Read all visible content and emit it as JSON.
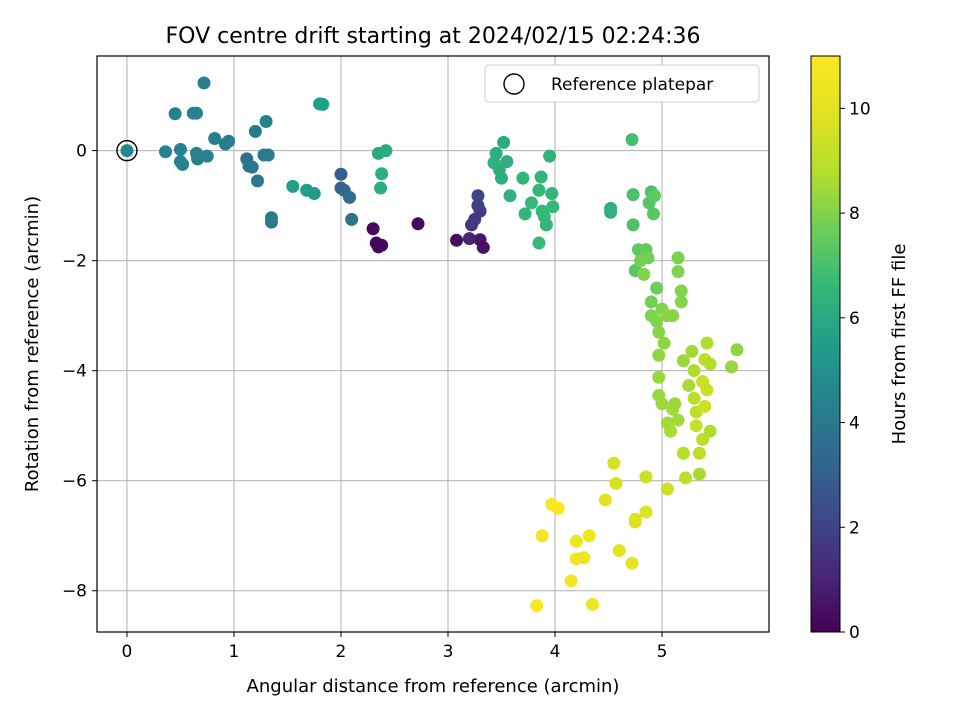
{
  "chart_data": {
    "type": "scatter",
    "title": "FOV centre drift starting at 2024/02/15 02:24:36",
    "xlabel": "Angular distance from reference (arcmin)",
    "ylabel": "Rotation from reference (arcmin)",
    "xlim": [
      -0.28,
      6.0
    ],
    "ylim": [
      -8.75,
      1.72
    ],
    "x_ticks": [
      0,
      1,
      2,
      3,
      4,
      5
    ],
    "y_ticks": [
      0,
      -2,
      -4,
      -6,
      -8
    ],
    "grid": true,
    "legend": {
      "placement": "top-right",
      "entries": [
        {
          "label": "Reference platepar",
          "marker": "open-circle"
        }
      ]
    },
    "reference_point": {
      "x": 0,
      "y": 0
    },
    "colorbar": {
      "label": "Hours from first FF file",
      "colormap": "viridis",
      "range": [
        0,
        11
      ],
      "ticks": [
        0,
        2,
        4,
        6,
        8,
        10
      ]
    },
    "points": [
      {
        "x": 0.0,
        "y": 0.0,
        "h": 4.5
      },
      {
        "x": 0.36,
        "y": -0.02,
        "h": 4.4
      },
      {
        "x": 0.45,
        "y": 0.67,
        "h": 4.3
      },
      {
        "x": 0.5,
        "y": 0.02,
        "h": 4.4
      },
      {
        "x": 0.5,
        "y": -0.2,
        "h": 4.3
      },
      {
        "x": 0.52,
        "y": -0.25,
        "h": 4.4
      },
      {
        "x": 0.62,
        "y": 0.68,
        "h": 4.3
      },
      {
        "x": 0.65,
        "y": 0.68,
        "h": 4.4
      },
      {
        "x": 0.65,
        "y": -0.05,
        "h": 4.4
      },
      {
        "x": 0.66,
        "y": -0.15,
        "h": 4.3
      },
      {
        "x": 0.72,
        "y": 1.23,
        "h": 4.3
      },
      {
        "x": 0.75,
        "y": -0.1,
        "h": 4.4
      },
      {
        "x": 0.82,
        "y": 0.22,
        "h": 4.3
      },
      {
        "x": 0.92,
        "y": 0.12,
        "h": 4.2
      },
      {
        "x": 0.95,
        "y": 0.17,
        "h": 4.2
      },
      {
        "x": 1.12,
        "y": -0.15,
        "h": 3.6
      },
      {
        "x": 1.14,
        "y": -0.28,
        "h": 3.8
      },
      {
        "x": 1.17,
        "y": -0.3,
        "h": 3.9
      },
      {
        "x": 1.2,
        "y": 0.35,
        "h": 4.0
      },
      {
        "x": 1.22,
        "y": -0.55,
        "h": 4.0
      },
      {
        "x": 1.28,
        "y": -0.08,
        "h": 4.2
      },
      {
        "x": 1.32,
        "y": -0.08,
        "h": 4.1
      },
      {
        "x": 1.3,
        "y": 0.53,
        "h": 4.3
      },
      {
        "x": 1.35,
        "y": -1.22,
        "h": 4.1
      },
      {
        "x": 1.35,
        "y": -1.3,
        "h": 4.0
      },
      {
        "x": 1.55,
        "y": -0.65,
        "h": 5.5
      },
      {
        "x": 1.68,
        "y": -0.72,
        "h": 5.5
      },
      {
        "x": 1.75,
        "y": -0.78,
        "h": 5.4
      },
      {
        "x": 1.8,
        "y": 0.85,
        "h": 5.5
      },
      {
        "x": 1.83,
        "y": 0.84,
        "h": 5.6
      },
      {
        "x": 2.0,
        "y": -0.43,
        "h": 3.0
      },
      {
        "x": 2.0,
        "y": -0.68,
        "h": 3.2
      },
      {
        "x": 2.03,
        "y": -0.72,
        "h": 3.3
      },
      {
        "x": 2.08,
        "y": -0.85,
        "h": 3.5
      },
      {
        "x": 2.1,
        "y": -1.25,
        "h": 3.8
      },
      {
        "x": 2.3,
        "y": -1.42,
        "h": 0.3
      },
      {
        "x": 2.33,
        "y": -1.68,
        "h": 0.2
      },
      {
        "x": 2.35,
        "y": -1.75,
        "h": 0.1
      },
      {
        "x": 2.38,
        "y": -1.72,
        "h": 0.2
      },
      {
        "x": 2.35,
        "y": -0.05,
        "h": 6.0
      },
      {
        "x": 2.42,
        "y": 0.0,
        "h": 6.1
      },
      {
        "x": 2.38,
        "y": -0.42,
        "h": 6.2
      },
      {
        "x": 2.37,
        "y": -0.68,
        "h": 6.2
      },
      {
        "x": 2.72,
        "y": -1.33,
        "h": 0.3
      },
      {
        "x": 3.08,
        "y": -1.63,
        "h": 0.4
      },
      {
        "x": 3.2,
        "y": -1.6,
        "h": 1.0
      },
      {
        "x": 3.22,
        "y": -1.35,
        "h": 1.6
      },
      {
        "x": 3.25,
        "y": -1.25,
        "h": 1.7
      },
      {
        "x": 3.3,
        "y": -1.1,
        "h": 1.8
      },
      {
        "x": 3.28,
        "y": -0.82,
        "h": 2.0
      },
      {
        "x": 3.28,
        "y": -1.0,
        "h": 1.9
      },
      {
        "x": 3.3,
        "y": -1.62,
        "h": 0.6
      },
      {
        "x": 3.33,
        "y": -1.76,
        "h": 0.5
      },
      {
        "x": 3.43,
        "y": -0.22,
        "h": 6.3
      },
      {
        "x": 3.45,
        "y": -0.05,
        "h": 6.2
      },
      {
        "x": 3.48,
        "y": -0.35,
        "h": 6.3
      },
      {
        "x": 3.5,
        "y": -0.5,
        "h": 6.2
      },
      {
        "x": 3.52,
        "y": 0.15,
        "h": 6.1
      },
      {
        "x": 3.55,
        "y": -0.2,
        "h": 6.3
      },
      {
        "x": 3.58,
        "y": -0.82,
        "h": 6.4
      },
      {
        "x": 3.7,
        "y": -0.5,
        "h": 6.5
      },
      {
        "x": 3.72,
        "y": -1.15,
        "h": 6.5
      },
      {
        "x": 3.78,
        "y": -0.95,
        "h": 6.6
      },
      {
        "x": 3.85,
        "y": -0.72,
        "h": 6.6
      },
      {
        "x": 3.87,
        "y": -0.48,
        "h": 6.5
      },
      {
        "x": 3.88,
        "y": -1.1,
        "h": 6.6
      },
      {
        "x": 3.85,
        "y": -1.68,
        "h": 6.7
      },
      {
        "x": 3.9,
        "y": -1.2,
        "h": 6.6
      },
      {
        "x": 3.92,
        "y": -1.35,
        "h": 6.5
      },
      {
        "x": 3.95,
        "y": -0.1,
        "h": 6.4
      },
      {
        "x": 3.97,
        "y": -0.78,
        "h": 6.5
      },
      {
        "x": 3.98,
        "y": -1.02,
        "h": 6.6
      },
      {
        "x": 4.52,
        "y": -1.05,
        "h": 6.3
      },
      {
        "x": 4.52,
        "y": -1.12,
        "h": 6.3
      },
      {
        "x": 4.72,
        "y": 0.2,
        "h": 6.9
      },
      {
        "x": 4.73,
        "y": -0.8,
        "h": 7.0
      },
      {
        "x": 4.73,
        "y": -1.35,
        "h": 7.1
      },
      {
        "x": 4.75,
        "y": -2.18,
        "h": 7.3
      },
      {
        "x": 4.78,
        "y": -1.8,
        "h": 7.4
      },
      {
        "x": 4.8,
        "y": -2.0,
        "h": 7.8
      },
      {
        "x": 4.83,
        "y": -2.25,
        "h": 8.0
      },
      {
        "x": 4.85,
        "y": -1.8,
        "h": 7.5
      },
      {
        "x": 4.87,
        "y": -1.95,
        "h": 7.7
      },
      {
        "x": 4.88,
        "y": -0.95,
        "h": 7.2
      },
      {
        "x": 4.9,
        "y": -0.75,
        "h": 7.0
      },
      {
        "x": 4.92,
        "y": -1.15,
        "h": 7.3
      },
      {
        "x": 4.93,
        "y": -0.82,
        "h": 7.4
      },
      {
        "x": 4.95,
        "y": -2.5,
        "h": 7.6
      },
      {
        "x": 4.9,
        "y": -2.75,
        "h": 7.8
      },
      {
        "x": 4.9,
        "y": -3.0,
        "h": 7.9
      },
      {
        "x": 4.95,
        "y": -3.1,
        "h": 8.0
      },
      {
        "x": 4.97,
        "y": -3.3,
        "h": 8.1
      },
      {
        "x": 5.0,
        "y": -2.88,
        "h": 8.0
      },
      {
        "x": 5.02,
        "y": -3.5,
        "h": 8.2
      },
      {
        "x": 4.97,
        "y": -3.72,
        "h": 8.2
      },
      {
        "x": 4.97,
        "y": -4.12,
        "h": 8.3
      },
      {
        "x": 4.97,
        "y": -4.45,
        "h": 8.4
      },
      {
        "x": 5.0,
        "y": -4.6,
        "h": 8.4
      },
      {
        "x": 5.05,
        "y": -4.95,
        "h": 8.5
      },
      {
        "x": 5.08,
        "y": -5.1,
        "h": 8.6
      },
      {
        "x": 5.1,
        "y": -4.7,
        "h": 8.5
      },
      {
        "x": 5.12,
        "y": -4.6,
        "h": 8.4
      },
      {
        "x": 5.15,
        "y": -4.9,
        "h": 8.5
      },
      {
        "x": 5.05,
        "y": -3.0,
        "h": 8.2
      },
      {
        "x": 5.1,
        "y": -3.0,
        "h": 8.1
      },
      {
        "x": 5.15,
        "y": -1.95,
        "h": 7.9
      },
      {
        "x": 5.15,
        "y": -2.2,
        "h": 8.0
      },
      {
        "x": 5.18,
        "y": -2.55,
        "h": 8.0
      },
      {
        "x": 5.18,
        "y": -2.75,
        "h": 8.1
      },
      {
        "x": 5.2,
        "y": -3.82,
        "h": 8.4
      },
      {
        "x": 5.2,
        "y": -5.5,
        "h": 8.8
      },
      {
        "x": 5.22,
        "y": -5.95,
        "h": 9.0
      },
      {
        "x": 5.25,
        "y": -4.27,
        "h": 8.6
      },
      {
        "x": 5.28,
        "y": -3.65,
        "h": 8.5
      },
      {
        "x": 5.3,
        "y": -4.0,
        "h": 8.7
      },
      {
        "x": 5.3,
        "y": -4.5,
        "h": 8.9
      },
      {
        "x": 5.32,
        "y": -4.75,
        "h": 9.0
      },
      {
        "x": 5.32,
        "y": -5.0,
        "h": 9.2
      },
      {
        "x": 5.35,
        "y": -5.5,
        "h": 9.0
      },
      {
        "x": 5.35,
        "y": -5.88,
        "h": 8.6
      },
      {
        "x": 5.38,
        "y": -5.25,
        "h": 9.0
      },
      {
        "x": 5.38,
        "y": -4.2,
        "h": 9.2
      },
      {
        "x": 5.4,
        "y": -3.8,
        "h": 9.1
      },
      {
        "x": 5.4,
        "y": -4.65,
        "h": 9.4
      },
      {
        "x": 5.42,
        "y": -3.5,
        "h": 8.7
      },
      {
        "x": 5.42,
        "y": -4.35,
        "h": 9.3
      },
      {
        "x": 5.45,
        "y": -3.88,
        "h": 8.8
      },
      {
        "x": 5.45,
        "y": -5.1,
        "h": 8.7
      },
      {
        "x": 5.65,
        "y": -3.93,
        "h": 8.3
      },
      {
        "x": 5.7,
        "y": -3.62,
        "h": 8.2
      },
      {
        "x": 4.55,
        "y": -5.68,
        "h": 9.6
      },
      {
        "x": 4.57,
        "y": -6.05,
        "h": 9.6
      },
      {
        "x": 4.47,
        "y": -6.35,
        "h": 10.0
      },
      {
        "x": 4.6,
        "y": -7.27,
        "h": 10.0
      },
      {
        "x": 4.72,
        "y": -7.5,
        "h": 10.1
      },
      {
        "x": 4.75,
        "y": -6.7,
        "h": 9.7
      },
      {
        "x": 4.75,
        "y": -6.75,
        "h": 9.9
      },
      {
        "x": 4.85,
        "y": -5.93,
        "h": 9.3
      },
      {
        "x": 4.85,
        "y": -6.57,
        "h": 9.8
      },
      {
        "x": 5.05,
        "y": -6.15,
        "h": 9.4
      },
      {
        "x": 3.83,
        "y": -8.27,
        "h": 10.8
      },
      {
        "x": 3.88,
        "y": -7.0,
        "h": 10.6
      },
      {
        "x": 3.97,
        "y": -6.43,
        "h": 10.9
      },
      {
        "x": 4.03,
        "y": -6.5,
        "h": 10.8
      },
      {
        "x": 4.15,
        "y": -7.82,
        "h": 10.7
      },
      {
        "x": 4.2,
        "y": -7.1,
        "h": 10.5
      },
      {
        "x": 4.2,
        "y": -7.42,
        "h": 10.6
      },
      {
        "x": 4.27,
        "y": -7.4,
        "h": 10.5
      },
      {
        "x": 4.32,
        "y": -7.0,
        "h": 10.4
      },
      {
        "x": 4.35,
        "y": -8.25,
        "h": 10.4
      }
    ]
  }
}
